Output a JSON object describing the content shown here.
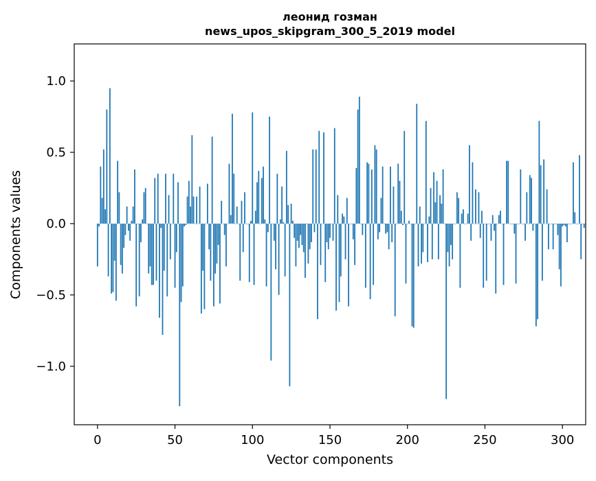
{
  "chart_data": {
    "type": "bar",
    "title": "леонид гозман",
    "subtitle": "news_upos_skipgram_300_5_2019 model",
    "xlabel": "Vector components",
    "ylabel": "Components values",
    "xlim": [
      -15,
      315
    ],
    "ylim": [
      -1.41,
      1.26
    ],
    "xticks": [
      0,
      50,
      100,
      150,
      200,
      250,
      300
    ],
    "xtick_labels": [
      "0",
      "50",
      "100",
      "150",
      "200",
      "250",
      "300"
    ],
    "yticks": [
      -1.0,
      -0.5,
      0.0,
      0.5,
      1.0
    ],
    "ytick_labels": [
      "−1.0",
      "−0.5",
      "0.0",
      "0.5",
      "1.0"
    ],
    "grid": false,
    "bar_color": "#1f77b4",
    "values": [
      -0.3,
      -0.02,
      0.4,
      0.18,
      0.52,
      0.1,
      0.8,
      -0.37,
      0.95,
      -0.49,
      -0.48,
      -0.26,
      -0.54,
      0.44,
      0.22,
      -0.29,
      -0.35,
      -0.17,
      -0.08,
      0.12,
      -0.05,
      -0.12,
      0.02,
      0.12,
      0.38,
      -0.58,
      0.0,
      -0.51,
      -0.13,
      0.03,
      0.22,
      0.25,
      0.0,
      -0.35,
      -0.3,
      -0.43,
      -0.43,
      0.32,
      -0.4,
      0.35,
      -0.66,
      -0.03,
      -0.78,
      -0.33,
      0.35,
      -0.51,
      0.2,
      -0.25,
      0.0,
      0.35,
      -0.45,
      -0.2,
      0.29,
      -1.28,
      -0.55,
      -0.44,
      -0.02,
      -0.01,
      0.19,
      0.3,
      0.12,
      0.62,
      0.19,
      0.0,
      0.19,
      0.0,
      0.26,
      -0.63,
      -0.33,
      -0.6,
      0.0,
      0.28,
      -0.18,
      -0.4,
      0.61,
      -0.58,
      -0.35,
      -0.28,
      -0.15,
      -0.56,
      0.16,
      0.0,
      -0.08,
      -0.3,
      0.0,
      0.42,
      0.06,
      0.77,
      0.35,
      0.0,
      0.12,
      0.0,
      -0.4,
      0.16,
      -0.2,
      0.22,
      0.0,
      0.0,
      -0.41,
      0.02,
      0.78,
      -0.43,
      0.09,
      0.29,
      0.37,
      0.0,
      0.32,
      0.4,
      0.03,
      -0.44,
      -0.06,
      0.75,
      -0.96,
      0.0,
      -0.12,
      -0.32,
      0.35,
      -0.5,
      0.03,
      0.26,
      0.01,
      -0.37,
      0.51,
      0.13,
      -1.14,
      0.14,
      0.02,
      -0.1,
      -0.3,
      -0.12,
      -0.17,
      -0.08,
      -0.15,
      -0.2,
      -0.38,
      0.0,
      -0.28,
      -0.18,
      -0.13,
      0.52,
      -0.06,
      0.52,
      -0.67,
      0.65,
      -0.29,
      0.0,
      0.64,
      -0.41,
      -0.13,
      -0.18,
      -0.1,
      0.0,
      -0.12,
      0.67,
      -0.61,
      0.2,
      -0.55,
      -0.37,
      0.07,
      0.05,
      -0.25,
      0.18,
      -0.58,
      0.0,
      0.0,
      -0.11,
      -0.29,
      0.39,
      0.8,
      0.89,
      0.0,
      -0.08,
      0.0,
      -0.45,
      0.43,
      0.42,
      -0.53,
      0.38,
      -0.43,
      0.55,
      0.52,
      -0.11,
      -0.06,
      0.18,
      0.4,
      0.0,
      -0.07,
      -0.06,
      -0.18,
      0.4,
      -0.13,
      0.26,
      -0.65,
      0.0,
      0.42,
      0.3,
      0.09,
      -0.01,
      0.65,
      -0.42,
      0.0,
      0.02,
      0.0,
      -0.72,
      -0.73,
      0.0,
      0.84,
      -0.3,
      0.12,
      -0.28,
      -0.2,
      0.0,
      0.72,
      -0.27,
      0.05,
      0.25,
      -0.25,
      0.36,
      0.15,
      0.3,
      -0.25,
      0.2,
      0.14,
      0.38,
      0.0,
      -1.23,
      -0.2,
      -0.3,
      -0.15,
      -0.25,
      0.0,
      0.0,
      0.22,
      0.18,
      -0.45,
      0.07,
      0.1,
      0.0,
      0.0,
      0.07,
      0.55,
      -0.12,
      0.43,
      0.0,
      0.24,
      0.0,
      0.22,
      -0.1,
      0.09,
      -0.45,
      0.0,
      -0.4,
      0.0,
      0.0,
      -0.12,
      0.06,
      -0.05,
      -0.49,
      0.0,
      0.06,
      0.09,
      0.0,
      -0.43,
      0.0,
      0.44,
      0.44,
      0.0,
      0.0,
      0.0,
      -0.07,
      -0.42,
      0.0,
      0.0,
      0.38,
      0.0,
      0.0,
      -0.12,
      0.22,
      0.0,
      0.34,
      0.32,
      -0.05,
      0.0,
      -0.72,
      -0.67,
      0.72,
      0.41,
      -0.4,
      0.45,
      0.0,
      0.24,
      -0.18,
      0.0,
      0.0,
      -0.18,
      0.0,
      0.0,
      -0.08,
      -0.32,
      -0.44,
      -0.02,
      -0.01,
      -0.02,
      -0.13,
      0.0,
      0.0,
      0.0,
      0.43,
      0.08,
      0.0,
      0.0,
      0.48,
      -0.25,
      0.0,
      -0.03,
      0.0
    ]
  }
}
